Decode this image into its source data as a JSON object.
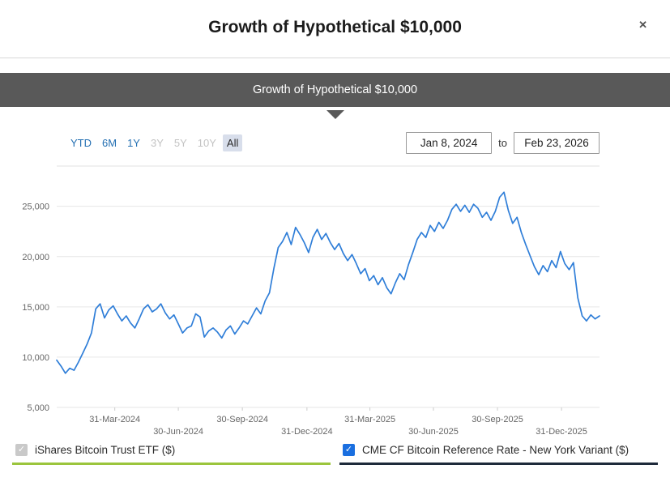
{
  "modal": {
    "title": "Growth of Hypothetical $10,000",
    "close_label": "✕"
  },
  "banner": {
    "label": "Growth of Hypothetical $10,000"
  },
  "controls": {
    "ranges": [
      {
        "label": "YTD",
        "state": "link"
      },
      {
        "label": "6M",
        "state": "link"
      },
      {
        "label": "1Y",
        "state": "link"
      },
      {
        "label": "3Y",
        "state": "disabled"
      },
      {
        "label": "5Y",
        "state": "disabled"
      },
      {
        "label": "10Y",
        "state": "disabled"
      },
      {
        "label": "All",
        "state": "active"
      }
    ],
    "start_date": "Jan 8, 2024",
    "to_label": "to",
    "end_date": "Feb 23, 2026"
  },
  "chart_data": {
    "type": "line",
    "title": "Growth of Hypothetical $10,000",
    "x_start": "Jan 8, 2024",
    "x_end": "Feb 23, 2026",
    "ylim": [
      5000,
      29000
    ],
    "grid": true,
    "legend_position": "bottom",
    "line_color": "#2f7ed8",
    "yticks": [
      {
        "value": 5000,
        "label": "5,000"
      },
      {
        "value": 10000,
        "label": "10,000"
      },
      {
        "value": 15000,
        "label": "15,000"
      },
      {
        "value": 20000,
        "label": "20,000"
      },
      {
        "value": 25000,
        "label": "25,000"
      }
    ],
    "xticks": [
      {
        "pos": 0.107,
        "label": "31-Mar-2024",
        "row": 0
      },
      {
        "pos": 0.224,
        "label": "30-Jun-2024",
        "row": 1
      },
      {
        "pos": 0.342,
        "label": "30-Sep-2024",
        "row": 0
      },
      {
        "pos": 0.461,
        "label": "31-Dec-2024",
        "row": 1
      },
      {
        "pos": 0.577,
        "label": "31-Mar-2025",
        "row": 0
      },
      {
        "pos": 0.694,
        "label": "30-Jun-2025",
        "row": 1
      },
      {
        "pos": 0.812,
        "label": "30-Sep-2025",
        "row": 0
      },
      {
        "pos": 0.93,
        "label": "31-Dec-2025",
        "row": 1
      }
    ],
    "series": [
      {
        "name": "CME CF Bitcoin Reference Rate - New York Variant ($)",
        "color": "#2f7ed8",
        "values": [
          9700,
          9100,
          8400,
          8900,
          8700,
          9500,
          10400,
          11300,
          12400,
          14800,
          15300,
          13900,
          14700,
          15100,
          14300,
          13600,
          14100,
          13400,
          12900,
          13800,
          14800,
          15200,
          14500,
          14800,
          15300,
          14400,
          13800,
          14200,
          13300,
          12400,
          12900,
          13100,
          14300,
          14000,
          12000,
          12600,
          12900,
          12500,
          11900,
          12700,
          13100,
          12300,
          12900,
          13600,
          13300,
          14100,
          14900,
          14300,
          15600,
          16400,
          18800,
          20900,
          21500,
          22400,
          21200,
          22900,
          22200,
          21400,
          20400,
          21900,
          22700,
          21700,
          22300,
          21400,
          20700,
          21300,
          20300,
          19600,
          20200,
          19300,
          18300,
          18800,
          17600,
          18100,
          17200,
          17900,
          16900,
          16300,
          17400,
          18300,
          17700,
          19200,
          20400,
          21700,
          22400,
          21900,
          23100,
          22500,
          23400,
          22800,
          23600,
          24700,
          25200,
          24500,
          25100,
          24400,
          25200,
          24800,
          23900,
          24400,
          23600,
          24500,
          25900,
          26400,
          24600,
          23300,
          23900,
          22400,
          21200,
          20100,
          19000,
          18200,
          19100,
          18500,
          19600,
          18900,
          20500,
          19300,
          18700,
          19400,
          15900,
          14100,
          13600,
          14200,
          13800,
          14100
        ]
      }
    ]
  },
  "legend": {
    "items": [
      {
        "label": "iShares Bitcoin Trust ETF ($)",
        "checked": true,
        "enabled": false,
        "underline_color": "#9bc53d",
        "checkbox_color": "#c9c9c9"
      },
      {
        "label": "CME CF Bitcoin Reference Rate - New York Variant ($)",
        "checked": true,
        "enabled": true,
        "underline_color": "#1e2a3a",
        "checkbox_color": "#1a6fe0"
      }
    ]
  }
}
